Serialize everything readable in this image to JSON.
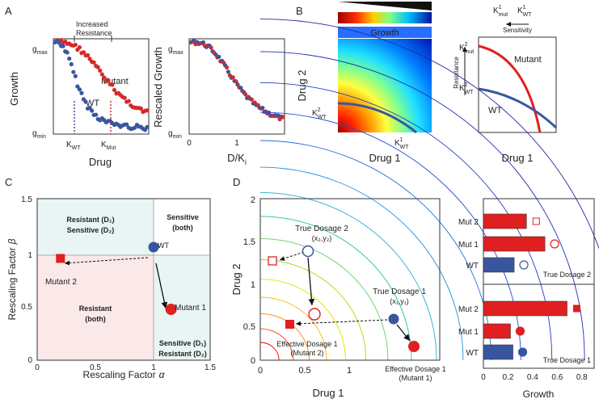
{
  "panel_labels": {
    "a": "A",
    "b": "B",
    "c": "C",
    "d": "D"
  },
  "panel_a": {
    "bracket_label_1": "Increased",
    "bracket_label_2": "Resistance",
    "ylabel": "Growth",
    "xlabel": "Drug",
    "ytick_max": "g",
    "ytick_max_sub": "max",
    "ytick_min": "g",
    "ytick_min_sub": "min",
    "mutant_label": "Mutant",
    "wt_label": "WT",
    "xtick_wt": "K",
    "xtick_wt_sub": "WT",
    "xtick_mut": "K",
    "xtick_mut_sub": "Mut",
    "right_ylabel": "Rescaled Growth",
    "right_xlabel": "D/K",
    "right_xlabel_sub": "i",
    "right_xticks": [
      "0",
      "1"
    ],
    "colors": {
      "wt": "#3a55a0",
      "mutant": "#d42a2a"
    }
  },
  "panel_b": {
    "colorbar_label": "Growth",
    "ylabel": "Drug 2",
    "xlabel": "Drug 1",
    "k2wt": "K",
    "k2wt_sup": "2",
    "k2wt_sub": "WT",
    "k1wt": "K",
    "k1wt_sup": "1",
    "k1wt_sub": "WT",
    "right_top_k1mut": "K",
    "right_top_k1mut_sup": "1",
    "right_top_k1mut_sub": "mut",
    "right_top_k1wt": "K",
    "right_top_k1wt_sup": "1",
    "right_top_k1wt_sub": "WT",
    "sensitivity": "Sensitivity",
    "resistance": "Resistance",
    "k2mut": "K",
    "k2mut_sup": "2",
    "k2mut_sub": "mut",
    "k2wt_right": "K",
    "k2wt_right_sup": "2",
    "k2wt_right_sub": "WT",
    "mutant_label": "Mutant",
    "wt_label": "WT",
    "right_xlabel": "Drug 1"
  },
  "panel_c": {
    "ylabel": "Rescaling Factor",
    "ylabel_greek": "β",
    "xlabel": "Rescaling Factor",
    "xlabel_greek": "α",
    "xticks": [
      "0",
      "0.5",
      "1",
      "1.5"
    ],
    "yticks": [
      "0",
      "0.5",
      "1",
      "1.5"
    ],
    "region_top_left_1": "Resistant (D₁)",
    "region_top_left_2": "Sensitive (D₂)",
    "region_top_right_1": "Sensitive",
    "region_top_right_2": "(both)",
    "region_bottom_left_1": "Resistant",
    "region_bottom_left_2": "(both)",
    "region_bottom_right_1": "Sensitive (D₁)",
    "region_bottom_right_2": "Resistant (D₂)",
    "wt_label": "WT",
    "mutant1_label": "Mutant 1",
    "mutant2_label": "Mutant 2",
    "points": {
      "wt": [
        1.0,
        1.0
      ],
      "mutant1": [
        1.15,
        0.45
      ],
      "mutant2": [
        0.2,
        0.9
      ]
    }
  },
  "panel_d": {
    "ylabel": "Drug 2",
    "xlabel": "Drug 1",
    "xticks": [
      "0",
      "0.5",
      "1"
    ],
    "yticks": [
      "0",
      "0.5",
      "1",
      "1.5",
      "2"
    ],
    "true_dosage_2": "True Dosage 2",
    "true_dosage_2_coords": "(x₂,y₂)",
    "true_dosage_1": "True Dosage 1",
    "true_dosage_1_coords": "(x₁,y₁)",
    "effective_1_mut2_a": "Effective Dosage 1",
    "effective_1_mut2_b": "(Mutant 2)",
    "effective_1_mut1_a": "Effective Dosage 1",
    "effective_1_mut1_b": "(Mutant 1)"
  },
  "chart_data": [
    {
      "type": "bar",
      "title": "True Dosage 2",
      "categories": [
        "WT",
        "Mut 1",
        "Mut 2"
      ],
      "values": [
        0.25,
        0.5,
        0.35
      ],
      "colors": [
        "#3a55a0",
        "#e02020",
        "#e02020"
      ],
      "xlim": [
        0,
        0.9
      ]
    },
    {
      "type": "bar",
      "title": "True Dosage 1",
      "categories": [
        "WT",
        "Mut 1",
        "Mut 2"
      ],
      "values": [
        0.24,
        0.22,
        0.68
      ],
      "colors": [
        "#3a55a0",
        "#e02020",
        "#e02020"
      ],
      "xlabel": "Growth",
      "xticks": [
        "0",
        "0.2",
        "0.4",
        "0.6",
        "0.8"
      ],
      "xlim": [
        0,
        0.9
      ]
    }
  ]
}
